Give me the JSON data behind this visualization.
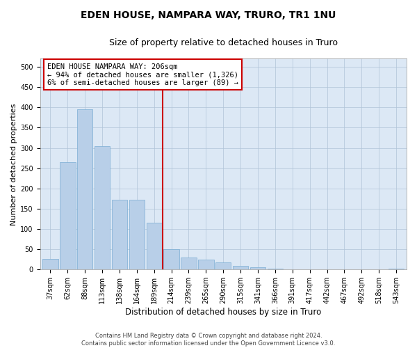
{
  "title": "EDEN HOUSE, NAMPARA WAY, TRURO, TR1 1NU",
  "subtitle": "Size of property relative to detached houses in Truro",
  "xlabel": "Distribution of detached houses by size in Truro",
  "ylabel": "Number of detached properties",
  "bar_labels": [
    "37sqm",
    "62sqm",
    "88sqm",
    "113sqm",
    "138sqm",
    "164sqm",
    "189sqm",
    "214sqm",
    "239sqm",
    "265sqm",
    "290sqm",
    "315sqm",
    "341sqm",
    "366sqm",
    "391sqm",
    "417sqm",
    "442sqm",
    "467sqm",
    "492sqm",
    "518sqm",
    "543sqm"
  ],
  "bar_values": [
    27,
    265,
    395,
    305,
    172,
    172,
    115,
    50,
    30,
    25,
    18,
    10,
    5,
    2,
    1,
    0,
    0,
    0,
    0,
    0,
    2
  ],
  "bar_color": "#b8cfe8",
  "bar_edgecolor": "#7aadd4",
  "vline_color": "#cc0000",
  "annotation_line1": "EDEN HOUSE NAMPARA WAY: 206sqm",
  "annotation_line2": "← 94% of detached houses are smaller (1,326)",
  "annotation_line3": "6% of semi-detached houses are larger (89) →",
  "annotation_box_facecolor": "#ffffff",
  "annotation_box_edgecolor": "#cc0000",
  "ylim": [
    0,
    520
  ],
  "yticks": [
    0,
    50,
    100,
    150,
    200,
    250,
    300,
    350,
    400,
    450,
    500
  ],
  "plot_bg": "#dce8f5",
  "grid_color": "#b0c4d8",
  "title_fontsize": 10,
  "subtitle_fontsize": 9,
  "ylabel_fontsize": 8,
  "xlabel_fontsize": 8.5,
  "tick_fontsize": 7,
  "annotation_fontsize": 7.5,
  "footer": "Contains HM Land Registry data © Crown copyright and database right 2024.\nContains public sector information licensed under the Open Government Licence v3.0.",
  "footer_fontsize": 6.0
}
